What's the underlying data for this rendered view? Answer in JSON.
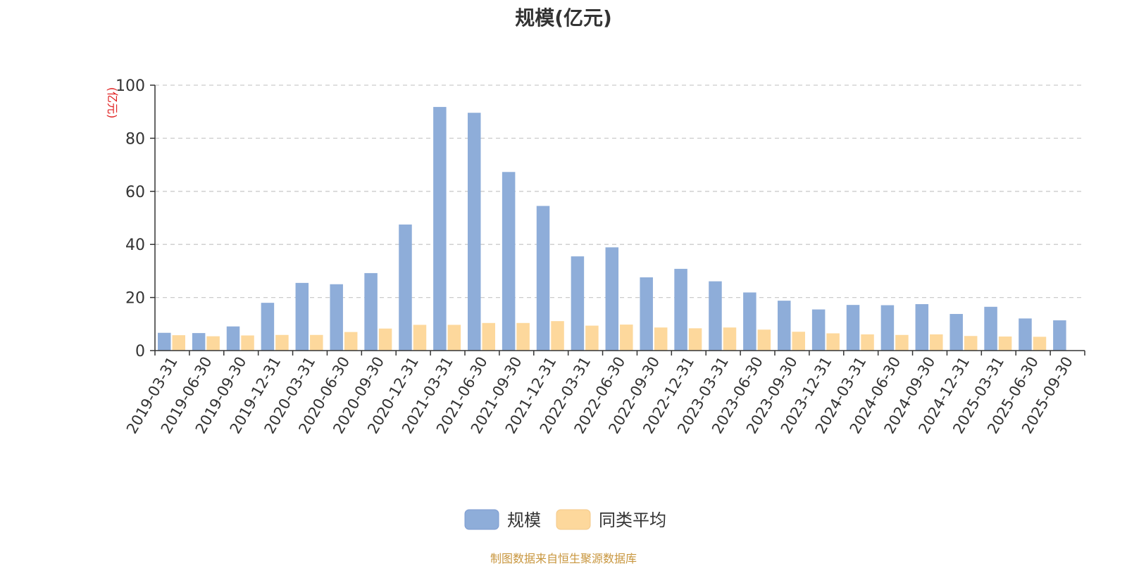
{
  "chart_data": {
    "type": "bar",
    "title": "规模(亿元)",
    "ylabel": "(亿元)",
    "xlabel": "",
    "ylim": [
      0,
      100
    ],
    "yticks": [
      0,
      20,
      40,
      60,
      80,
      100
    ],
    "grid": true,
    "legend_position": "bottom",
    "categories": [
      "2019-03-31",
      "2019-06-30",
      "2019-09-30",
      "2019-12-31",
      "2020-03-31",
      "2020-06-30",
      "2020-09-30",
      "2020-12-31",
      "2021-03-31",
      "2021-06-30",
      "2021-09-30",
      "2021-12-31",
      "2022-03-31",
      "2022-06-30",
      "2022-09-30",
      "2022-12-31",
      "2023-03-31",
      "2023-06-30",
      "2023-09-30",
      "2023-12-31",
      "2024-03-31",
      "2024-06-30",
      "2024-09-30",
      "2024-12-31",
      "2025-03-31",
      "2025-06-30",
      "2025-09-30"
    ],
    "series": [
      {
        "name": "规模",
        "color": "#8eadd9",
        "values": [
          6.7,
          6.6,
          9.1,
          18.0,
          25.5,
          25.0,
          29.2,
          47.5,
          91.8,
          89.6,
          67.3,
          54.5,
          35.5,
          38.9,
          27.6,
          30.8,
          26.1,
          21.9,
          18.8,
          15.5,
          17.2,
          17.1,
          17.5,
          13.8,
          16.5,
          12.1,
          11.4
        ]
      },
      {
        "name": "同类平均",
        "color": "#fdd89c",
        "values": [
          5.8,
          5.4,
          5.7,
          5.9,
          5.9,
          7.0,
          8.3,
          9.7,
          9.7,
          10.4,
          10.4,
          11.1,
          9.4,
          9.8,
          8.7,
          8.4,
          8.7,
          7.9,
          7.1,
          6.5,
          6.1,
          5.9,
          6.1,
          5.5,
          5.3,
          5.2,
          0
        ]
      }
    ]
  },
  "footer": {
    "text": "制图数据来自恒生聚源数据库",
    "color": "#c8963e"
  },
  "colors": {
    "axis": "#333333",
    "grid": "#cccccc",
    "ylabel": "#e02020"
  }
}
